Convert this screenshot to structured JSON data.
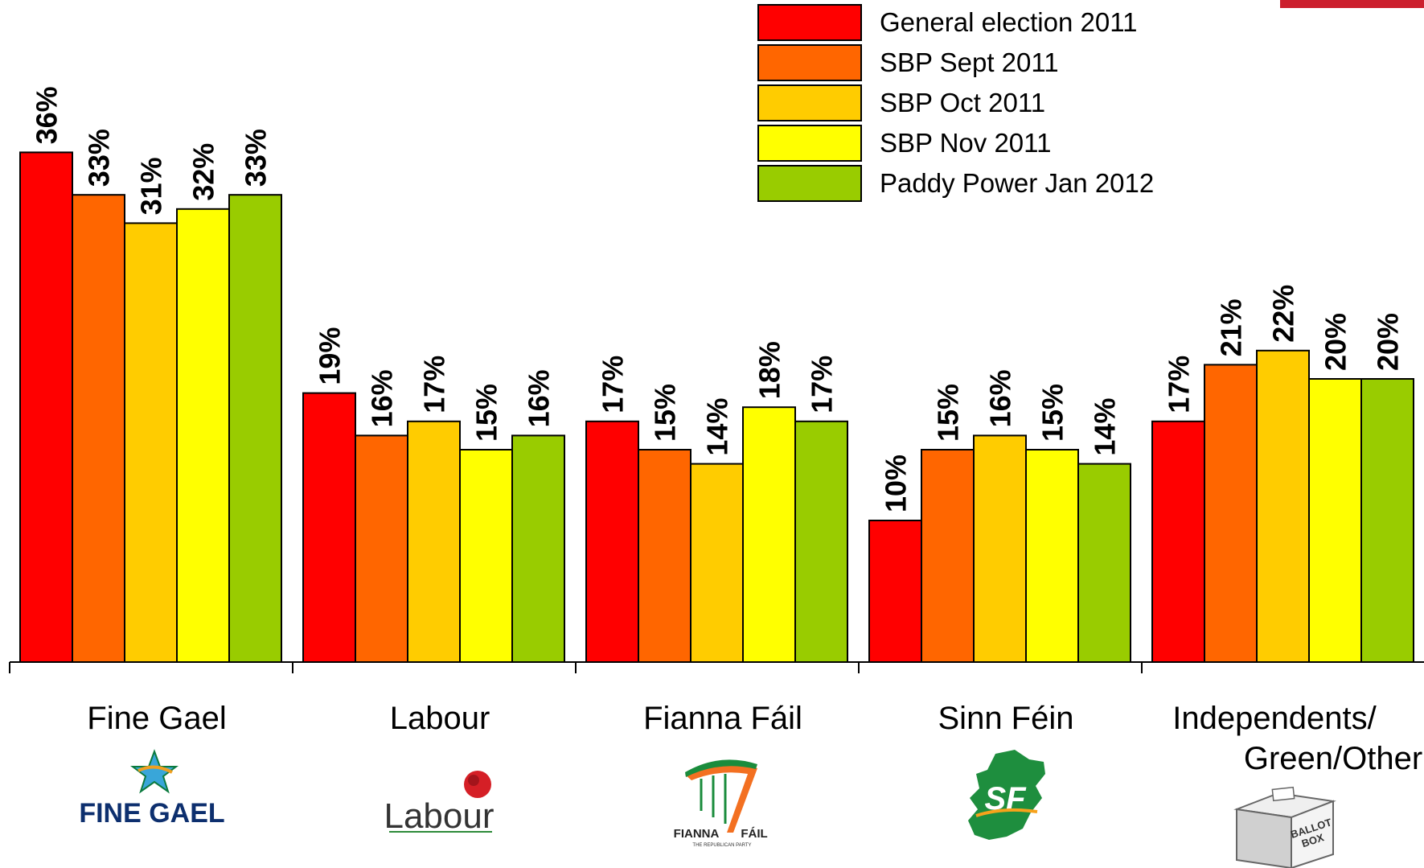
{
  "chart_data": {
    "type": "bar",
    "categories": [
      "Fine Gael",
      "Labour",
      "Fianna Fáil",
      "Sinn Féin",
      "Independents/\nGreen/Other"
    ],
    "series": [
      {
        "name": "General election 2011",
        "color": "#ff0000",
        "values": [
          36,
          19,
          17,
          10,
          17
        ]
      },
      {
        "name": "SBP Sept 2011",
        "color": "#ff6600",
        "values": [
          33,
          16,
          15,
          15,
          21
        ]
      },
      {
        "name": "SBP Oct 2011",
        "color": "#ffcc00",
        "values": [
          31,
          17,
          14,
          16,
          22
        ]
      },
      {
        "name": "SBP Nov 2011",
        "color": "#ffff00",
        "values": [
          32,
          15,
          18,
          15,
          20
        ]
      },
      {
        "name": "Paddy Power Jan 2012",
        "color": "#99cc00",
        "values": [
          33,
          16,
          17,
          14,
          20
        ]
      }
    ],
    "value_labels": [
      [
        "36%",
        "33%",
        "31%",
        "32%",
        "33%"
      ],
      [
        "19%",
        "16%",
        "17%",
        "15%",
        "16%"
      ],
      [
        "17%",
        "15%",
        "14%",
        "18%",
        "17%"
      ],
      [
        "10%",
        "15%",
        "16%",
        "15%",
        "14%"
      ],
      [
        "17%",
        "21%",
        "22%",
        "20%",
        "20%"
      ]
    ],
    "legend_position": "top-right",
    "ylim": [
      0,
      36
    ],
    "grid": false
  },
  "logos": {
    "fine_gael": "FINE GAEL",
    "labour": "Labour",
    "fianna_fail": "FIANNA",
    "fianna_fail_2": "FÁIL",
    "fianna_fail_sub": "THE REPUBLICAN PARTY",
    "sinn_fein": "SF",
    "ballot_box": "BALLOT",
    "ballot_box_2": "BOX"
  },
  "colors": {
    "corner_tag": "#cc1f2d"
  }
}
